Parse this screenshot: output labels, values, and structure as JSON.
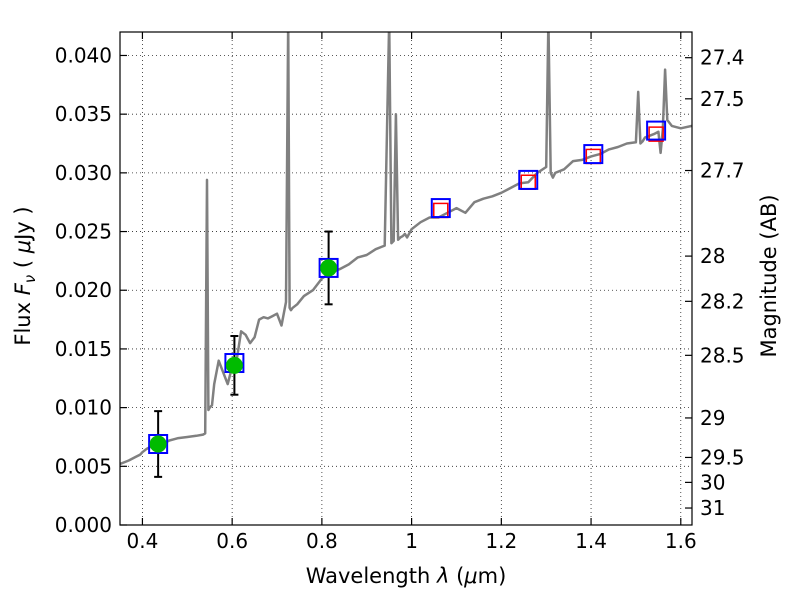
{
  "chart_data": {
    "type": "line",
    "xlabel": {
      "prefix": "Wavelength  ",
      "symbol": "λ",
      "unit_open": " (",
      "mu": "μ",
      "unit_close": "m)"
    },
    "ylabel": {
      "prefix": "Flux  ",
      "symbol": "F",
      "subscript": "ν",
      "unit_open": "  ( ",
      "mu": "μ",
      "unit_close": "Jy )"
    },
    "y2label": "Magnitude (AB)",
    "xlim": [
      0.35,
      1.625
    ],
    "ylim": [
      0.0,
      0.042
    ],
    "grid": true,
    "x_ticks": [
      {
        "v": 0.4,
        "label": "0.4"
      },
      {
        "v": 0.6,
        "label": "0.6"
      },
      {
        "v": 0.8,
        "label": "0.8"
      },
      {
        "v": 1.0,
        "label": "1"
      },
      {
        "v": 1.2,
        "label": "1.2"
      },
      {
        "v": 1.4,
        "label": "1.4"
      },
      {
        "v": 1.6,
        "label": "1.6"
      }
    ],
    "y_ticks": [
      {
        "v": 0.0,
        "label": "0.000"
      },
      {
        "v": 0.005,
        "label": "0.005"
      },
      {
        "v": 0.01,
        "label": "0.010"
      },
      {
        "v": 0.015,
        "label": "0.015"
      },
      {
        "v": 0.02,
        "label": "0.020"
      },
      {
        "v": 0.025,
        "label": "0.025"
      },
      {
        "v": 0.03,
        "label": "0.030"
      },
      {
        "v": 0.035,
        "label": "0.035"
      },
      {
        "v": 0.04,
        "label": "0.040"
      }
    ],
    "y2_ticks": [
      {
        "mag": 27.4,
        "label": "27.4"
      },
      {
        "mag": 27.5,
        "label": "27.5"
      },
      {
        "mag": 27.7,
        "label": "27.7"
      },
      {
        "mag": 28,
        "label": "28"
      },
      {
        "mag": 28.2,
        "label": "28.2"
      },
      {
        "mag": 28.5,
        "label": "28.5"
      },
      {
        "mag": 29,
        "label": "29"
      },
      {
        "mag": 29.5,
        "label": "29.5"
      },
      {
        "mag": 30,
        "label": "30"
      },
      {
        "mag": 31,
        "label": "31"
      }
    ],
    "colors": {
      "spectrum": "#808080",
      "observed": "#00bb00",
      "model_box": "#0000ff",
      "upper_box": "#ff0000",
      "errorbar": "#000000"
    },
    "series": [
      {
        "kind": "spectrum",
        "x": [
          0.35,
          0.37,
          0.385,
          0.395,
          0.4,
          0.41,
          0.42,
          0.43,
          0.44,
          0.45,
          0.46,
          0.47,
          0.48,
          0.5,
          0.52,
          0.535,
          0.54,
          0.544,
          0.547,
          0.55,
          0.555,
          0.56,
          0.57,
          0.58,
          0.59,
          0.6,
          0.61,
          0.62,
          0.63,
          0.64,
          0.65,
          0.66,
          0.67,
          0.68,
          0.69,
          0.7,
          0.71,
          0.72,
          0.725,
          0.728,
          0.731,
          0.735,
          0.745,
          0.76,
          0.78,
          0.8,
          0.82,
          0.84,
          0.86,
          0.88,
          0.9,
          0.92,
          0.94,
          0.95,
          0.955,
          0.96,
          0.965,
          0.97,
          0.975,
          0.98,
          0.985,
          0.99,
          1.0,
          1.02,
          1.04,
          1.06,
          1.08,
          1.1,
          1.12,
          1.14,
          1.16,
          1.18,
          1.2,
          1.22,
          1.24,
          1.26,
          1.28,
          1.3,
          1.305,
          1.31,
          1.315,
          1.32,
          1.34,
          1.36,
          1.38,
          1.4,
          1.42,
          1.44,
          1.46,
          1.48,
          1.5,
          1.505,
          1.51,
          1.515,
          1.52,
          1.54,
          1.55,
          1.555,
          1.56,
          1.565,
          1.57,
          1.58,
          1.6,
          1.625
        ],
        "y": [
          0.0052,
          0.0055,
          0.0058,
          0.006,
          0.0062,
          0.0065,
          0.0067,
          0.0068,
          0.0069,
          0.007,
          0.0072,
          0.0073,
          0.0074,
          0.0075,
          0.0076,
          0.0077,
          0.0078,
          0.0294,
          0.0098,
          0.01,
          0.0102,
          0.012,
          0.014,
          0.013,
          0.012,
          0.0135,
          0.014,
          0.0165,
          0.0162,
          0.0155,
          0.016,
          0.0175,
          0.0177,
          0.0176,
          0.0178,
          0.018,
          0.017,
          0.019,
          0.043,
          0.0185,
          0.0183,
          0.0185,
          0.0188,
          0.0195,
          0.02,
          0.021,
          0.0215,
          0.0218,
          0.0222,
          0.0228,
          0.023,
          0.0235,
          0.0238,
          0.043,
          0.024,
          0.0242,
          0.035,
          0.0243,
          0.0245,
          0.0246,
          0.0248,
          0.0245,
          0.0252,
          0.0258,
          0.0262,
          0.0262,
          0.0266,
          0.027,
          0.0266,
          0.0275,
          0.0278,
          0.028,
          0.0283,
          0.0287,
          0.0291,
          0.0292,
          0.03,
          0.0305,
          0.043,
          0.03,
          0.0296,
          0.03,
          0.0303,
          0.031,
          0.0311,
          0.0314,
          0.0316,
          0.032,
          0.0322,
          0.0325,
          0.0326,
          0.0369,
          0.0325,
          0.0327,
          0.033,
          0.0333,
          0.0335,
          0.0317,
          0.0337,
          0.0388,
          0.0345,
          0.034,
          0.0338,
          0.034
        ]
      },
      {
        "kind": "observed",
        "x": [
          0.435,
          0.605,
          0.815
        ],
        "y": [
          0.0069,
          0.0136,
          0.0219
        ],
        "yerr_low": [
          0.0028,
          0.0025,
          0.0031
        ],
        "yerr_high": [
          0.0028,
          0.0025,
          0.0031
        ]
      },
      {
        "kind": "model_photometry",
        "x": [
          0.435,
          0.605,
          0.815,
          1.065,
          1.26,
          1.405,
          1.545
        ],
        "y": [
          0.0069,
          0.0138,
          0.0219,
          0.027,
          0.0294,
          0.0316,
          0.0336
        ]
      },
      {
        "kind": "upper_model",
        "x": [
          1.065,
          1.26,
          1.405,
          1.545
        ],
        "y": [
          0.0268,
          0.0292,
          0.0314,
          0.0333
        ]
      }
    ]
  }
}
